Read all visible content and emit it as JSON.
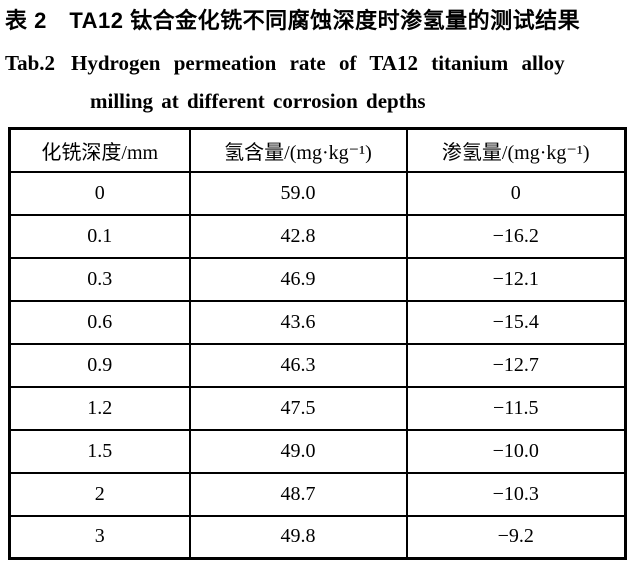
{
  "page": {
    "title_zh": "表 2　TA12 钛合金化铣不同腐蚀深度时渗氢量的测试结果",
    "title_en_label": "Tab.2",
    "title_en_line1": "Hydrogen permeation rate of TA12 titanium alloy",
    "title_en_line2": "milling at different corrosion depths"
  },
  "chart_data": {
    "type": "table",
    "title_zh": "表 2　TA12 钛合金化铣不同腐蚀深度时渗氢量的测试结果",
    "title_en": "Tab.2 Hydrogen permeation rate of TA12 titanium alloy milling at different corrosion depths",
    "columns": [
      "化铣深度/mm",
      "氢含量/(mg·kg⁻¹)",
      "渗氢量/(mg·kg⁻¹)"
    ],
    "rows": [
      [
        "0",
        "59.0",
        "0"
      ],
      [
        "0.1",
        "42.8",
        "−16.2"
      ],
      [
        "0.3",
        "46.9",
        "−12.1"
      ],
      [
        "0.6",
        "43.6",
        "−15.4"
      ],
      [
        "0.9",
        "46.3",
        "−12.7"
      ],
      [
        "1.2",
        "47.5",
        "−11.5"
      ],
      [
        "1.5",
        "49.0",
        "−10.0"
      ],
      [
        "2",
        "48.7",
        "−10.3"
      ],
      [
        "3",
        "49.8",
        "−9.2"
      ]
    ],
    "colors": {
      "text": "#000000",
      "border": "#000000",
      "background": "#ffffff"
    }
  }
}
